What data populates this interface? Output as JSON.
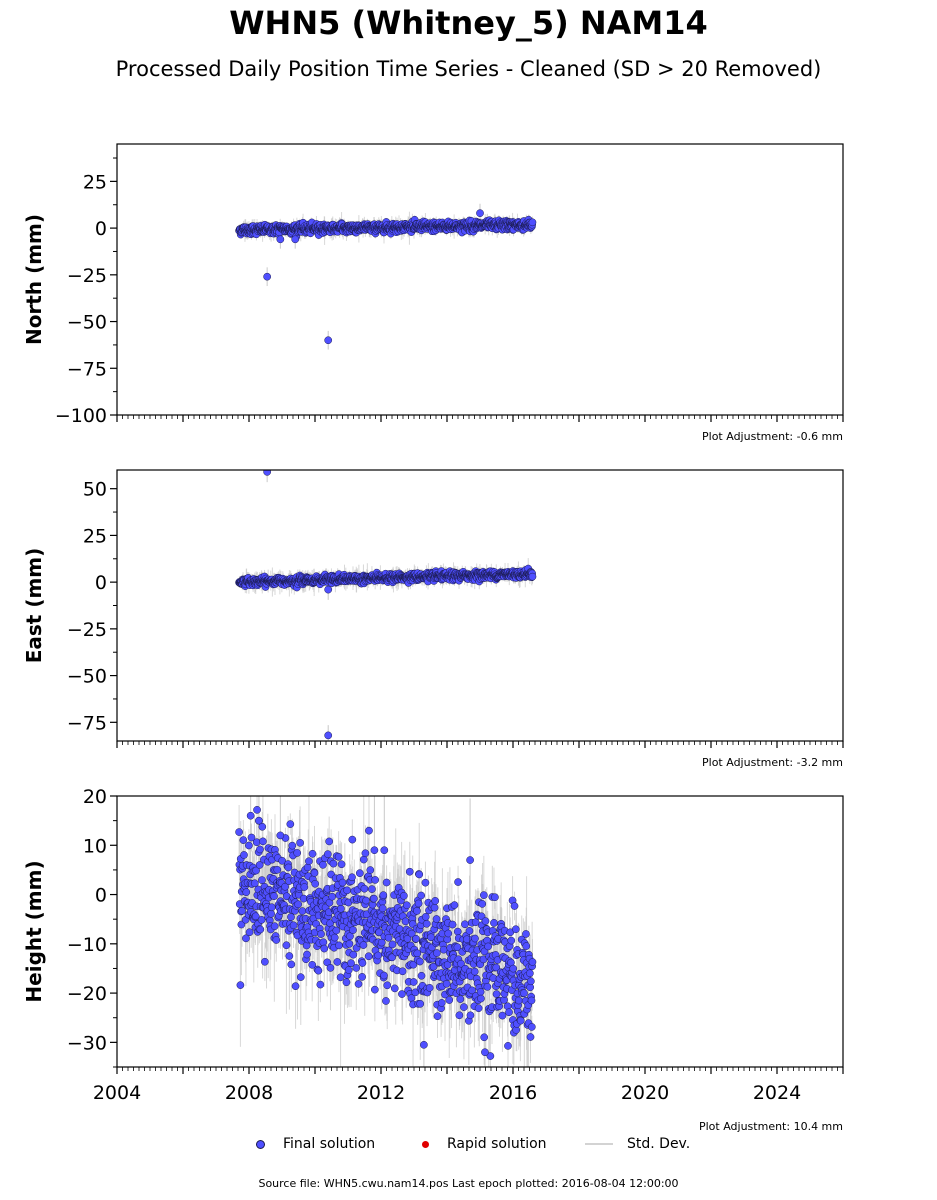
{
  "title": "WHN5 (Whitney_5) NAM14",
  "subtitle": "Processed Daily Position Time Series - Cleaned (SD > 20 Removed)",
  "legend": {
    "final": "Final solution",
    "rapid": "Rapid solution",
    "stddev": "Std. Dev."
  },
  "footer": {
    "source": "Source file: WHN5.cwu.nam14.pos  Last epoch plotted: 2016-08-04 12:00:00"
  },
  "colors": {
    "final": "#4f4fff",
    "rapid": "#e00000",
    "stddev": "#c8c8c8",
    "marker_edge": "#1a1a4d"
  },
  "chart_data": [
    {
      "type": "scatter",
      "ylabel": "North (mm)",
      "xlim": [
        2004,
        2026
      ],
      "ylim": [
        -100,
        45
      ],
      "yticks": [
        -100,
        -75,
        -50,
        -25,
        0,
        25
      ],
      "adjustment": "Plot Adjustment: -0.6 mm",
      "series": [
        {
          "name": "Final solution",
          "x_range": [
            2007.7,
            2016.59
          ],
          "trend": [
            [
              2007.7,
              -1.0
            ],
            [
              2016.59,
              1.8
            ]
          ],
          "scatter_sd": 1.2,
          "errbar_sd": 2.0,
          "outliers": [
            [
              2008.55,
              -26.0
            ],
            [
              2010.4,
              -60.0
            ],
            [
              2015.0,
              8.0
            ],
            [
              2009.4,
              -6.0
            ],
            [
              2008.95,
              -6.0
            ]
          ]
        }
      ]
    },
    {
      "type": "scatter",
      "ylabel": "East (mm)",
      "xlim": [
        2004,
        2026
      ],
      "ylim": [
        -85,
        60
      ],
      "yticks": [
        -75,
        -50,
        -25,
        0,
        25,
        50
      ],
      "adjustment": "Plot Adjustment: -3.2 mm",
      "series": [
        {
          "name": "Final solution",
          "x_range": [
            2007.7,
            2016.59
          ],
          "trend": [
            [
              2007.7,
              0.0
            ],
            [
              2016.59,
              4.5
            ]
          ],
          "scatter_sd": 1.0,
          "errbar_sd": 2.2,
          "outliers": [
            [
              2008.55,
              59.0
            ],
            [
              2010.4,
              -82.0
            ],
            [
              2010.4,
              -4.0
            ]
          ]
        }
      ]
    },
    {
      "type": "scatter",
      "ylabel": "Height (mm)",
      "xlim": [
        2004,
        2026
      ],
      "ylim": [
        -35,
        20
      ],
      "yticks": [
        -30,
        -20,
        -10,
        0,
        10,
        20
      ],
      "xticks": [
        2004,
        2008,
        2012,
        2016,
        2020,
        2024
      ],
      "adjustment": "Plot Adjustment: 10.4 mm",
      "series": [
        {
          "name": "Final solution",
          "x_range": [
            2007.7,
            2016.59
          ],
          "trend": [
            [
              2007.7,
              2.0
            ],
            [
              2016.59,
              -18.0
            ]
          ],
          "scatter_sd": 6.0,
          "errbar_sd": 5.0,
          "outliers": [
            [
              2008.05,
              16.0
            ],
            [
              2008.3,
              15.0
            ],
            [
              2008.95,
              12.0
            ],
            [
              2011.8,
              9.0
            ],
            [
              2012.1,
              9.0
            ],
            [
              2014.7,
              7.0
            ],
            [
              2013.3,
              -30.5
            ],
            [
              2015.15,
              -32.0
            ]
          ]
        }
      ]
    }
  ]
}
